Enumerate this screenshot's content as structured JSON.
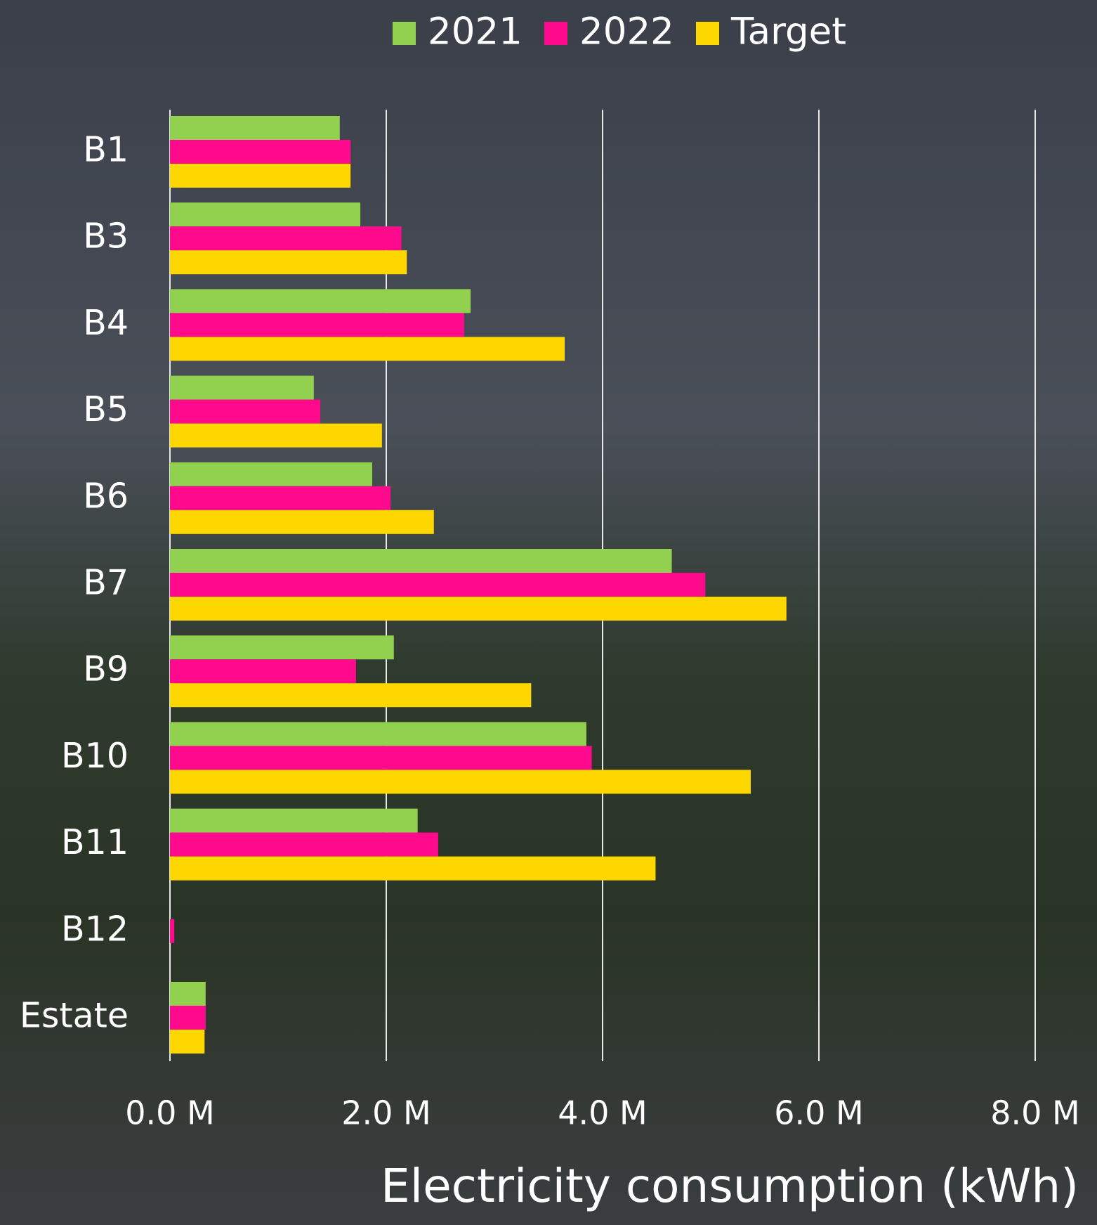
{
  "chart_data": {
    "type": "bar",
    "orientation": "horizontal",
    "x_label": "Electricity consumption (kWh)",
    "categories": [
      "B1",
      "B3",
      "B4",
      "B5",
      "B6",
      "B7",
      "B9",
      "B10",
      "B11",
      "B12",
      "Estate"
    ],
    "series": [
      {
        "name": "2021",
        "color": "#92d050",
        "values": [
          1570000,
          1760000,
          2780000,
          1330000,
          1870000,
          4640000,
          2070000,
          3850000,
          2290000,
          null,
          330000
        ]
      },
      {
        "name": "2022",
        "color": "#ff0a8c",
        "values": [
          1670000,
          2140000,
          2720000,
          1390000,
          2040000,
          4950000,
          1720000,
          3900000,
          2480000,
          40000,
          330000
        ]
      },
      {
        "name": "Target",
        "color": "#ffd700",
        "values": [
          1670000,
          2190000,
          3650000,
          1960000,
          2440000,
          5700000,
          3340000,
          5370000,
          4490000,
          null,
          320000
        ]
      }
    ],
    "xlim": [
      0,
      8000000
    ],
    "xticks": [
      {
        "value": 0,
        "label": "0.0 M"
      },
      {
        "value": 2000000,
        "label": "2.0 M"
      },
      {
        "value": 4000000,
        "label": "4.0 M"
      },
      {
        "value": 6000000,
        "label": "6.0 M"
      },
      {
        "value": 8000000,
        "label": "8.0 M"
      }
    ],
    "grid": true,
    "legend": "top"
  }
}
